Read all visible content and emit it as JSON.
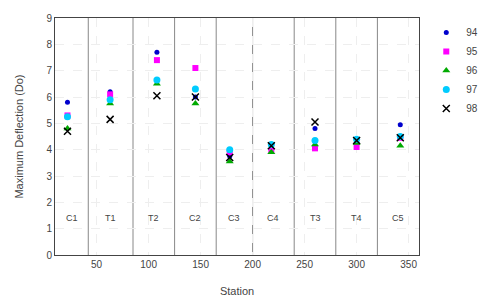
{
  "chart_data": {
    "type": "scatter",
    "xlabel": "Station",
    "ylabel": "Maximum Deflection (Do)",
    "xlim": [
      10,
      360
    ],
    "ylim": [
      0,
      9
    ],
    "xticks": [
      50,
      100,
      150,
      200,
      250,
      300,
      350
    ],
    "yticks": [
      0,
      1,
      2,
      3,
      4,
      5,
      6,
      7,
      8,
      9
    ],
    "grid": true,
    "legend": "right",
    "vlines": [
      42,
      85,
      125,
      165,
      200,
      240,
      280,
      320
    ],
    "annotations": [
      {
        "text": "C1",
        "x": 26,
        "y": 1.4
      },
      {
        "text": "T1",
        "x": 63,
        "y": 1.4
      },
      {
        "text": "T2",
        "x": 105,
        "y": 1.4
      },
      {
        "text": "C2",
        "x": 145,
        "y": 1.4
      },
      {
        "text": "C3",
        "x": 182,
        "y": 1.4
      },
      {
        "text": "C4",
        "x": 220,
        "y": 1.4
      },
      {
        "text": "T3",
        "x": 260,
        "y": 1.4
      },
      {
        "text": "T4",
        "x": 300,
        "y": 1.4
      },
      {
        "text": "C5",
        "x": 340,
        "y": 1.4
      }
    ],
    "series": [
      {
        "name": "94",
        "color": "#0000CD",
        "marker": "point",
        "x": [
          22,
          63,
          108,
          145,
          178,
          218,
          260,
          300,
          342
        ],
        "values": [
          5.8,
          6.2,
          7.7,
          6.0,
          3.75,
          4.15,
          4.8,
          4.3,
          4.95
        ]
      },
      {
        "name": "95",
        "color": "#FF00FF",
        "marker": "square",
        "x": [
          22,
          63,
          108,
          145,
          178,
          218,
          260,
          300,
          342
        ],
        "values": [
          5.3,
          6.1,
          7.4,
          7.1,
          3.9,
          3.95,
          4.05,
          4.1,
          4.45
        ]
      },
      {
        "name": "96",
        "color": "#00AA00",
        "marker": "triangle-up",
        "x": [
          22,
          63,
          108,
          145,
          178,
          218,
          260,
          300,
          342
        ],
        "values": [
          4.8,
          5.75,
          6.5,
          5.75,
          3.55,
          3.9,
          4.2,
          4.25,
          4.15
        ]
      },
      {
        "name": "97",
        "color": "#00CCFF",
        "marker": "circle",
        "x": [
          22,
          63,
          108,
          145,
          178,
          218,
          260,
          300,
          342
        ],
        "values": [
          5.25,
          5.9,
          6.65,
          6.3,
          4.0,
          4.2,
          4.35,
          4.4,
          4.5
        ]
      },
      {
        "name": "98",
        "color": "#000000",
        "marker": "x",
        "x": [
          22,
          63,
          108,
          145,
          178,
          218,
          260,
          300,
          342
        ],
        "values": [
          4.7,
          5.15,
          6.05,
          6.0,
          3.7,
          4.15,
          5.05,
          4.35,
          4.45
        ]
      }
    ]
  }
}
